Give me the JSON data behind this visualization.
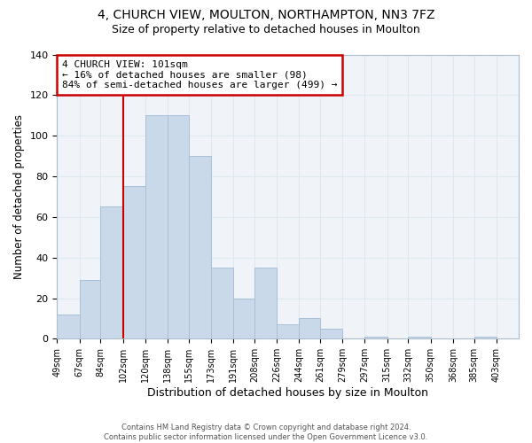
{
  "title1": "4, CHURCH VIEW, MOULTON, NORTHAMPTON, NN3 7FZ",
  "title2": "Size of property relative to detached houses in Moulton",
  "xlabel": "Distribution of detached houses by size in Moulton",
  "ylabel": "Number of detached properties",
  "bar_left_edges": [
    49,
    67,
    84,
    102,
    120,
    138,
    155,
    173,
    191,
    208,
    226,
    244,
    261,
    279,
    297,
    315,
    332,
    350,
    368,
    385
  ],
  "bar_heights": [
    12,
    29,
    65,
    75,
    110,
    110,
    90,
    35,
    20,
    35,
    7,
    10,
    5,
    0,
    1,
    0,
    1,
    0,
    0,
    1
  ],
  "bar_widths": [
    18,
    17,
    18,
    18,
    18,
    17,
    18,
    18,
    17,
    18,
    18,
    17,
    18,
    18,
    18,
    17,
    18,
    18,
    17,
    18
  ],
  "tick_labels": [
    "49sqm",
    "67sqm",
    "84sqm",
    "102sqm",
    "120sqm",
    "138sqm",
    "155sqm",
    "173sqm",
    "191sqm",
    "208sqm",
    "226sqm",
    "244sqm",
    "261sqm",
    "279sqm",
    "297sqm",
    "315sqm",
    "332sqm",
    "350sqm",
    "368sqm",
    "385sqm",
    "403sqm"
  ],
  "tick_positions": [
    49,
    67,
    84,
    102,
    120,
    138,
    155,
    173,
    191,
    208,
    226,
    244,
    261,
    279,
    297,
    315,
    332,
    350,
    368,
    385,
    403
  ],
  "bar_color": "#c9d9ea",
  "bar_edge_color": "#a8c0d8",
  "vline_x": 102,
  "vline_color": "#cc0000",
  "annotation_text": "4 CHURCH VIEW: 101sqm\n← 16% of detached houses are smaller (98)\n84% of semi-detached houses are larger (499) →",
  "annotation_box_edgecolor": "#cc0000",
  "annotation_box_facecolor": "#ffffff",
  "ylim": [
    0,
    140
  ],
  "xlim": [
    49,
    421
  ],
  "yticks": [
    0,
    20,
    40,
    60,
    80,
    100,
    120,
    140
  ],
  "footnote": "Contains HM Land Registry data © Crown copyright and database right 2024.\nContains public sector information licensed under the Open Government Licence v3.0.",
  "title1_fontsize": 10,
  "title2_fontsize": 9,
  "ylabel_fontsize": 8.5,
  "xlabel_fontsize": 9,
  "grid_color": "#dde8f0",
  "tick_fontsize": 7
}
